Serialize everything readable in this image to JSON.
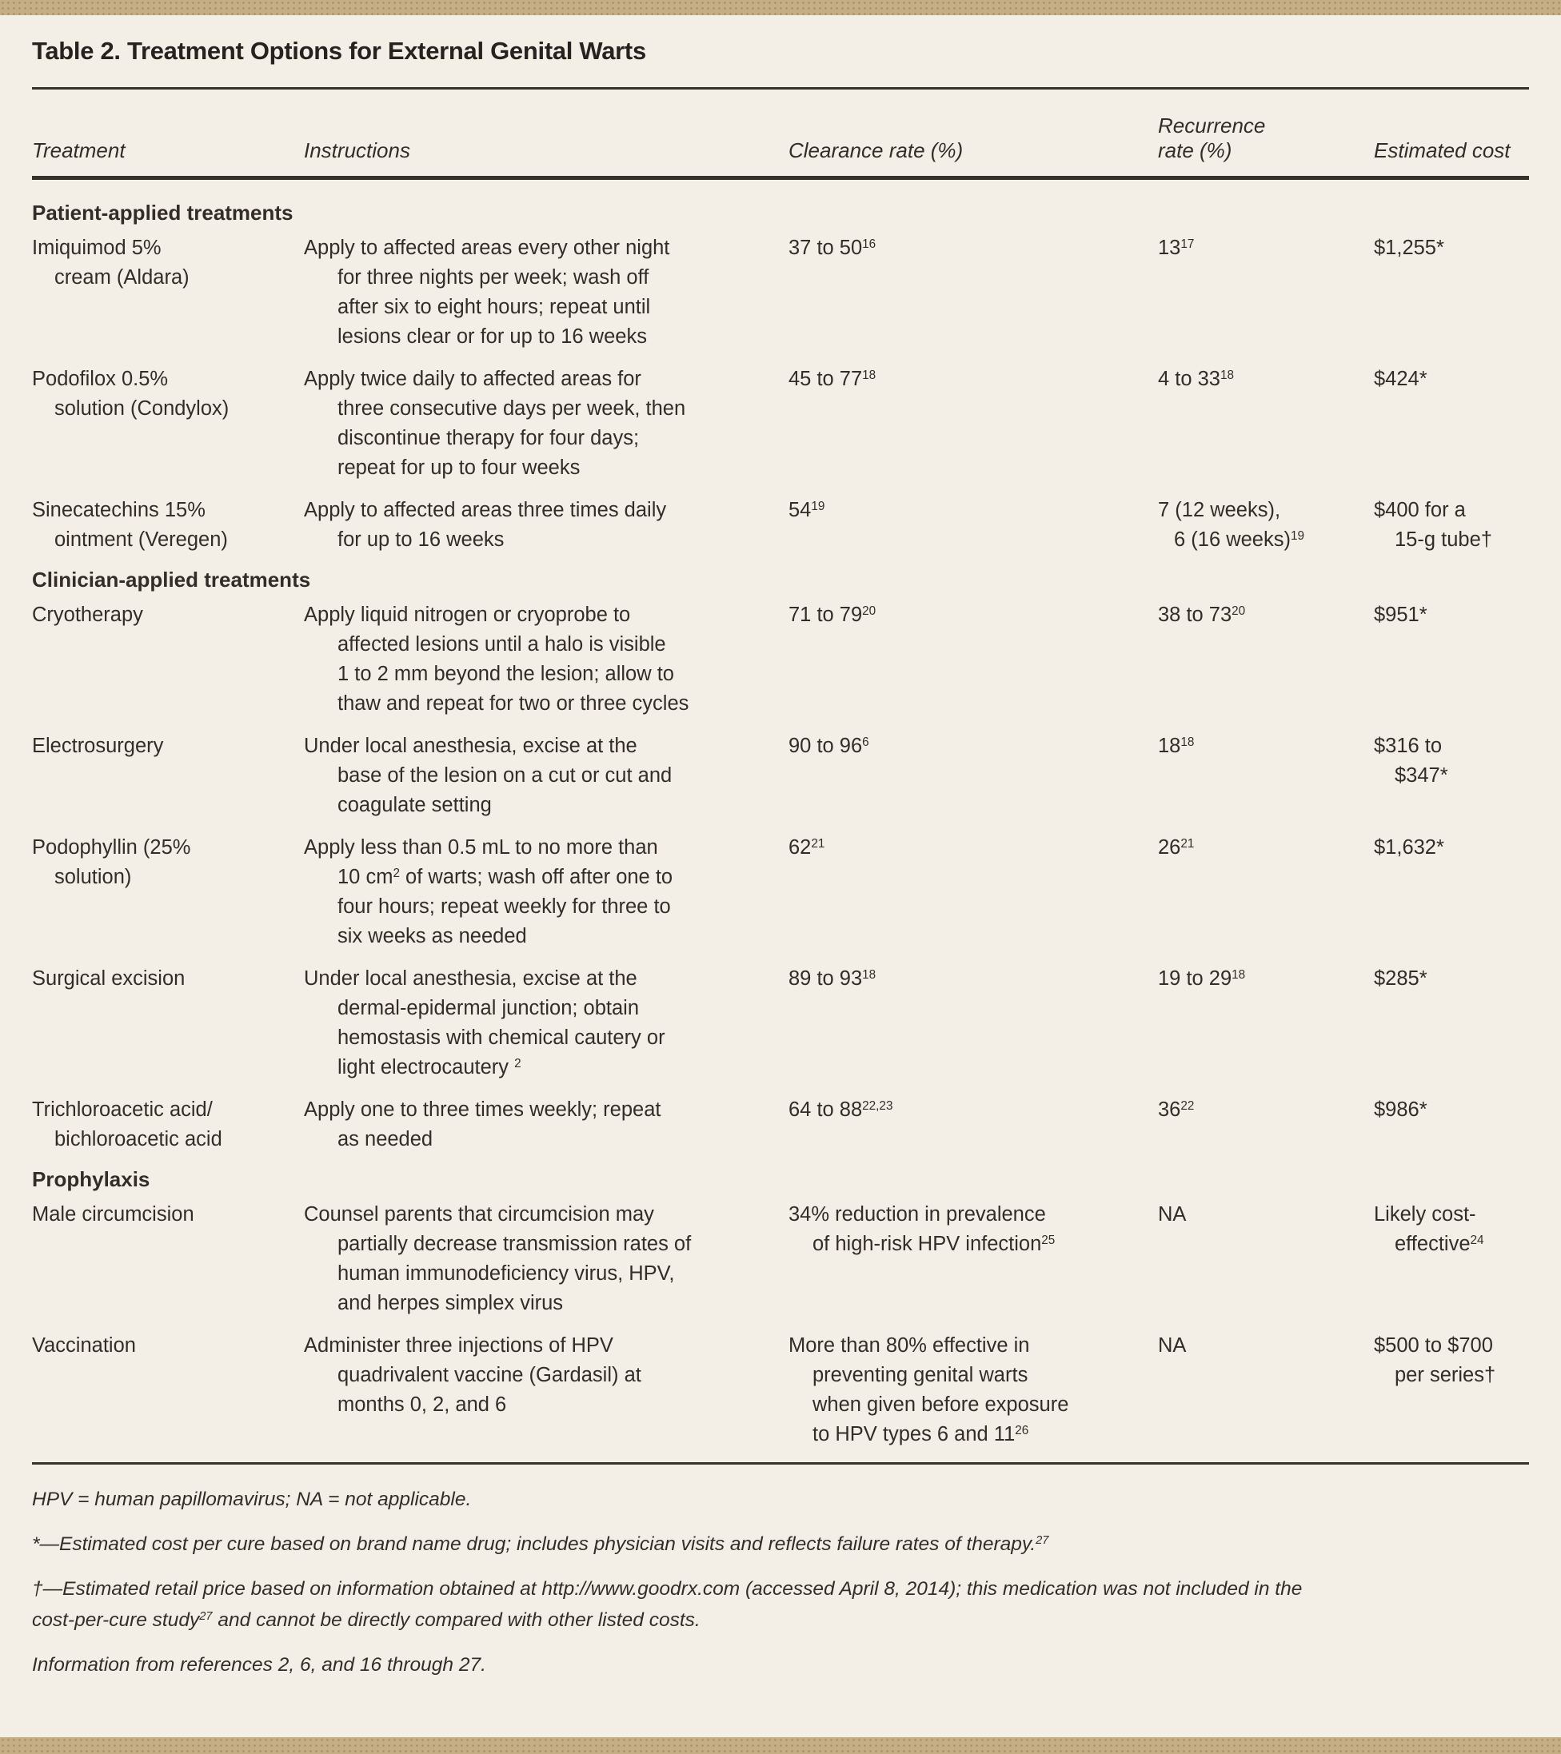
{
  "title": "Table 2. Treatment Options for External Genital Warts",
  "colors": {
    "bar": "#c5ae83",
    "bg": "#f4efe6",
    "ink": "#322d29",
    "rule": "#38322c"
  },
  "table": {
    "columns": [
      "Treatment",
      "Instructions",
      "Clearance rate (%)",
      "Recurrence\nrate (%)",
      "Estimated cost"
    ],
    "sections": [
      {
        "header": "Patient-applied treatments",
        "rows": [
          {
            "treatment": "Imiquimod 5%\ncream (Aldara)",
            "instructions": "Apply to affected areas every other night\nfor three nights per week; wash off\nafter six to eight hours; repeat until\nlesions clear or for up to 16 weeks",
            "clearance": "37 to 50^{16}",
            "recurrence": "13^{17}",
            "cost": "$1,255*"
          },
          {
            "treatment": "Podofilox 0.5%\nsolution (Condylox)",
            "instructions": "Apply twice daily to affected areas for\nthree consecutive days per week, then\ndiscontinue therapy for four days;\nrepeat for up to four weeks",
            "clearance": "45 to 77^{18}",
            "recurrence": "4 to 33^{18}",
            "cost": "$424*"
          },
          {
            "treatment": "Sinecatechins 15%\nointment (Veregen)",
            "instructions": "Apply to affected areas three times daily\nfor up to 16 weeks",
            "clearance": "54^{19}",
            "recurrence": "7 (12 weeks),\n6 (16 weeks)^{19}",
            "cost": "$400 for a\n15-g tube†"
          }
        ]
      },
      {
        "header": "Clinician-applied treatments",
        "rows": [
          {
            "treatment": "Cryotherapy",
            "instructions": "Apply liquid nitrogen or cryoprobe to\naffected lesions until a halo is visible\n1 to 2 mm beyond the lesion; allow to\nthaw and repeat for two or three cycles",
            "clearance": "71 to 79^{20}",
            "recurrence": "38 to 73^{20}",
            "cost": "$951*"
          },
          {
            "treatment": "Electrosurgery",
            "instructions": "Under local anesthesia, excise at the\nbase of the lesion on a cut or cut and\ncoagulate setting",
            "clearance": "90 to 96^{6}",
            "recurrence": "18^{18}",
            "cost": "$316 to\n$347*"
          },
          {
            "treatment": "Podophyllin (25%\nsolution)",
            "instructions": "Apply less than 0.5 mL to no more than\n10 cm^{2} of warts; wash off after one to\nfour hours; repeat weekly for three to\nsix weeks as needed",
            "clearance": "62^{21}",
            "recurrence": "26^{21}",
            "cost": "$1,632*"
          },
          {
            "treatment": "Surgical excision",
            "instructions": "Under local anesthesia, excise at the\ndermal-epidermal junction; obtain\nhemostasis with chemical cautery or\nlight electrocautery ^{2}",
            "clearance": "89 to 93^{18}",
            "recurrence": "19 to 29^{18}",
            "cost": "$285*"
          },
          {
            "treatment": "Trichloroacetic acid/\nbichloroacetic acid",
            "instructions": "Apply one to three times weekly; repeat\nas needed",
            "clearance": "64 to 88^{22,23}",
            "recurrence": "36^{22}",
            "cost": "$986*"
          }
        ]
      },
      {
        "header": "Prophylaxis",
        "rows": [
          {
            "treatment": "Male circumcision",
            "instructions": "Counsel parents that circumcision may\npartially decrease transmission rates of\nhuman immunodeficiency virus, HPV,\nand herpes simplex virus",
            "clearance": "34% reduction in prevalence\nof high-risk HPV infection^{25}",
            "recurrence": "NA",
            "cost": "Likely cost-\neffective^{24}"
          },
          {
            "treatment": "Vaccination",
            "instructions": "Administer three injections of HPV\nquadrivalent vaccine (Gardasil) at\nmonths 0, 2, and 6",
            "clearance": "More than 80% effective in\npreventing genital warts\nwhen given before exposure\nto HPV types 6 and 11^{26}",
            "recurrence": "NA",
            "cost": "$500 to $700\nper series†"
          }
        ]
      }
    ]
  },
  "footer": {
    "abbreviations": "HPV = human papillomavirus; NA = not applicable.",
    "note_asterisk": "*—Estimated cost per cure based on brand name drug; includes physician visits and reflects failure rates of therapy.^{27}",
    "note_dagger": "†—Estimated retail price based on information obtained at http://www.goodrx.com (accessed April 8, 2014); this medication was not included in the\ncost-per-cure study^{27} and cannot be directly compared with other listed costs.",
    "source": "Information from references 2, 6, and 16 through 27."
  }
}
